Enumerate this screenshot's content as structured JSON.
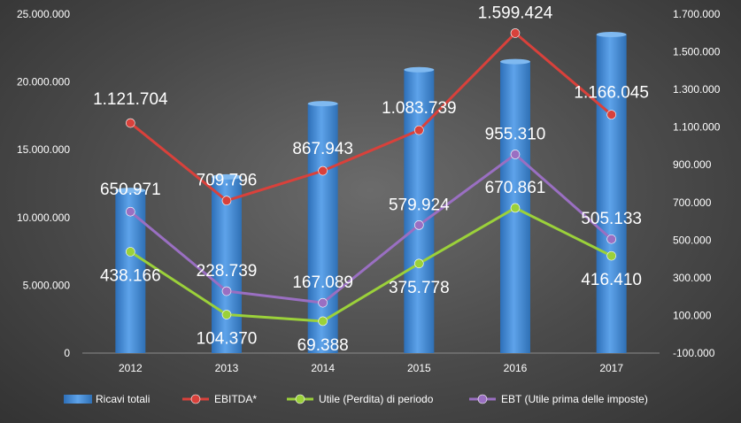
{
  "chart_data": {
    "type": "bar+line",
    "categories": [
      "2012",
      "2013",
      "2014",
      "2015",
      "2016",
      "2017"
    ],
    "left_axis": {
      "ylim": [
        0,
        25000000
      ],
      "ticks": [
        0,
        5000000,
        10000000,
        15000000,
        20000000,
        25000000
      ],
      "tick_labels": [
        "0",
        "5.000.000",
        "10.000.000",
        "15.000.000",
        "20.000.000",
        "25.000.000"
      ]
    },
    "right_axis": {
      "ylim": [
        -100000,
        1700000
      ],
      "ticks": [
        -100000,
        100000,
        300000,
        500000,
        700000,
        900000,
        1100000,
        1300000,
        1500000,
        1700000
      ],
      "tick_labels": [
        "-100.000",
        "100.000",
        "300.000",
        "500.000",
        "700.000",
        "900.000",
        "1.100.000",
        "1.300.000",
        "1.500.000",
        "1.700.000"
      ]
    },
    "grid": false,
    "legend_position": "bottom",
    "series": [
      {
        "name": "Ricavi totali",
        "kind": "bar",
        "axis": "left",
        "color": "#4a8fd6",
        "values": [
          12000000,
          13000000,
          18400000,
          20900000,
          21500000,
          23500000
        ]
      },
      {
        "name": "EBITDA*",
        "kind": "line",
        "axis": "right",
        "color": "#d9413b",
        "values": [
          1121704,
          709796,
          867943,
          1083739,
          1599424,
          1166045
        ],
        "labels": [
          "1.121.704",
          "709.796",
          "867.943",
          "1.083.739",
          "1.599.424",
          "1.166.045"
        ]
      },
      {
        "name": "Utile (Perdita) di periodo",
        "kind": "line",
        "axis": "right",
        "color": "#9bd13a",
        "values": [
          438166,
          104370,
          69388,
          375778,
          670861,
          416410
        ],
        "labels": [
          "438.166",
          "104.370",
          "69.388",
          "375.778",
          "670.861",
          "416.410"
        ]
      },
      {
        "name": "EBT (Utile prima delle imposte)",
        "kind": "line",
        "axis": "right",
        "color": "#9a6fc2",
        "values": [
          650971,
          228739,
          167089,
          579924,
          955310,
          505133
        ],
        "labels": [
          "650.971",
          "228.739",
          "167.089",
          "579.924",
          "955.310",
          "505.133"
        ]
      }
    ]
  }
}
